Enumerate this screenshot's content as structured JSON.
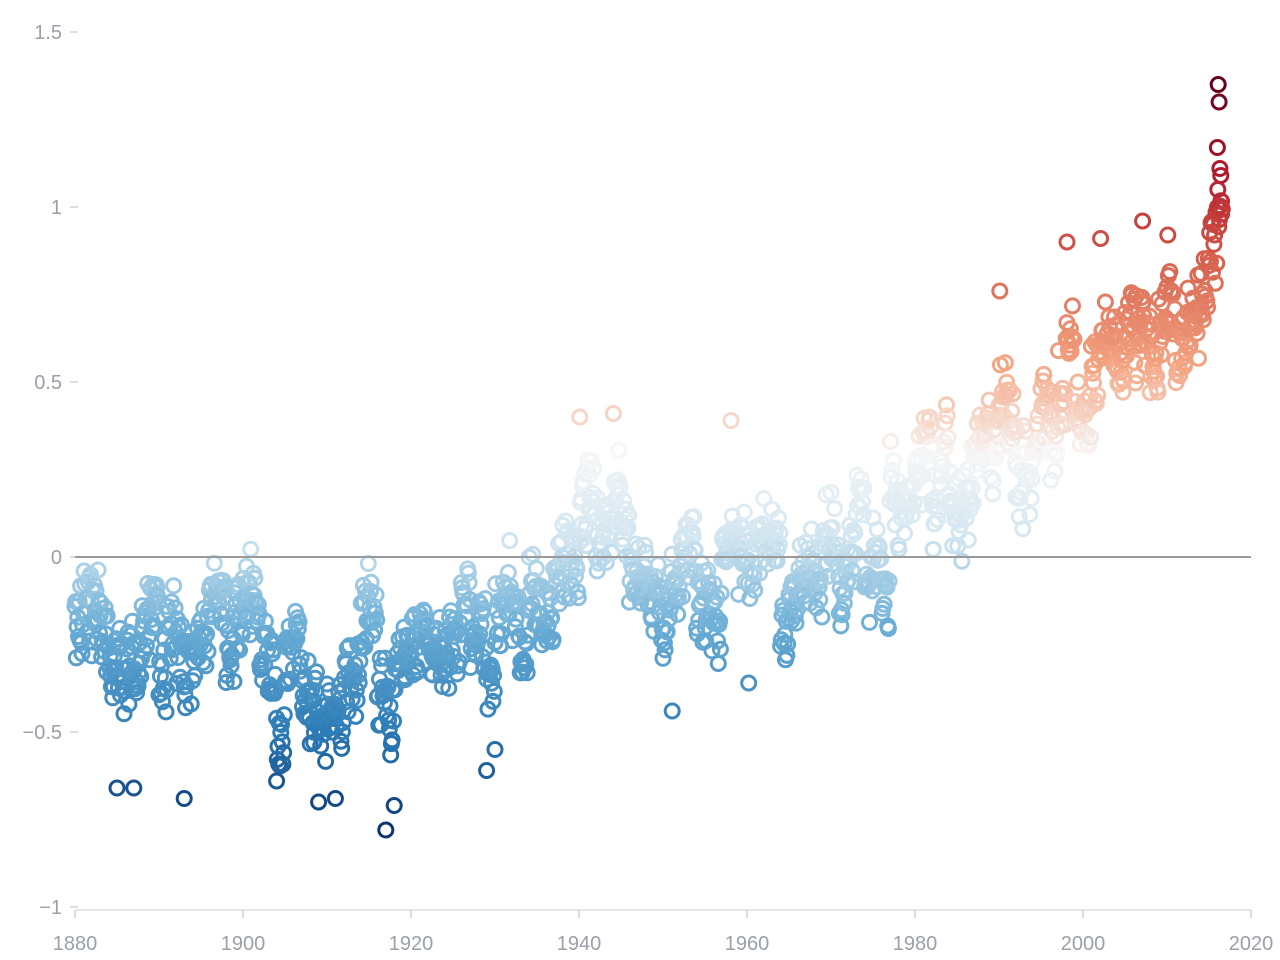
{
  "chart_data": {
    "type": "scatter",
    "title": "",
    "xlabel": "",
    "ylabel": "",
    "xlim": [
      1880,
      2020
    ],
    "ylim": [
      -1,
      1.5
    ],
    "xticks": [
      {
        "value": 1880,
        "label": "1880"
      },
      {
        "value": 1900,
        "label": "1900"
      },
      {
        "value": 1920,
        "label": "1920"
      },
      {
        "value": 1940,
        "label": "1940"
      },
      {
        "value": 1960,
        "label": "1960"
      },
      {
        "value": 1980,
        "label": "1980"
      },
      {
        "value": 2000,
        "label": "2000"
      },
      {
        "value": 2020,
        "label": "2020"
      }
    ],
    "yticks": [
      {
        "value": -1,
        "label": "−1"
      },
      {
        "value": -0.5,
        "label": "−0.5"
      },
      {
        "value": 0,
        "label": "0"
      },
      {
        "value": 0.5,
        "label": "0.5"
      },
      {
        "value": 1,
        "label": "1"
      },
      {
        "value": 1.5,
        "label": "1.5"
      }
    ],
    "reference_line": 0,
    "grid": false,
    "color_scale": "diverging blue-white-red by value",
    "colors": {
      "coldest": "#08306b",
      "cold": "#2c7bb6",
      "neutral": "#f7f7f7",
      "warm": "#ef8a62",
      "hottest": "#67001f",
      "zero_line": "#9a9a9a",
      "tick_text": "#9a9fa8"
    },
    "yearly_anomaly": [
      [
        1880,
        -0.2
      ],
      [
        1881,
        -0.12
      ],
      [
        1882,
        -0.14
      ],
      [
        1883,
        -0.22
      ],
      [
        1884,
        -0.3
      ],
      [
        1885,
        -0.32
      ],
      [
        1886,
        -0.26
      ],
      [
        1887,
        -0.33
      ],
      [
        1888,
        -0.2
      ],
      [
        1889,
        -0.12
      ],
      [
        1890,
        -0.35
      ],
      [
        1891,
        -0.22
      ],
      [
        1892,
        -0.27
      ],
      [
        1893,
        -0.32
      ],
      [
        1894,
        -0.3
      ],
      [
        1895,
        -0.23
      ],
      [
        1896,
        -0.11
      ],
      [
        1897,
        -0.11
      ],
      [
        1898,
        -0.27
      ],
      [
        1899,
        -0.17
      ],
      [
        1900,
        -0.08
      ],
      [
        1901,
        -0.15
      ],
      [
        1902,
        -0.28
      ],
      [
        1903,
        -0.37
      ],
      [
        1904,
        -0.47
      ],
      [
        1905,
        -0.26
      ],
      [
        1906,
        -0.22
      ],
      [
        1907,
        -0.39
      ],
      [
        1908,
        -0.43
      ],
      [
        1909,
        -0.48
      ],
      [
        1910,
        -0.43
      ],
      [
        1911,
        -0.44
      ],
      [
        1912,
        -0.36
      ],
      [
        1913,
        -0.34
      ],
      [
        1914,
        -0.15
      ],
      [
        1915,
        -0.14
      ],
      [
        1916,
        -0.36
      ],
      [
        1917,
        -0.46
      ],
      [
        1918,
        -0.3
      ],
      [
        1919,
        -0.27
      ],
      [
        1920,
        -0.27
      ],
      [
        1921,
        -0.19
      ],
      [
        1922,
        -0.28
      ],
      [
        1923,
        -0.26
      ],
      [
        1924,
        -0.27
      ],
      [
        1925,
        -0.22
      ],
      [
        1926,
        -0.1
      ],
      [
        1927,
        -0.22
      ],
      [
        1928,
        -0.2
      ],
      [
        1929,
        -0.36
      ],
      [
        1930,
        -0.16
      ],
      [
        1931,
        -0.09
      ],
      [
        1932,
        -0.16
      ],
      [
        1933,
        -0.29
      ],
      [
        1934,
        -0.12
      ],
      [
        1935,
        -0.2
      ],
      [
        1936,
        -0.15
      ],
      [
        1937,
        -0.03
      ],
      [
        1938,
        -0.02
      ],
      [
        1939,
        -0.01
      ],
      [
        1940,
        0.1
      ],
      [
        1941,
        0.18
      ],
      [
        1942,
        0.06
      ],
      [
        1943,
        0.08
      ],
      [
        1944,
        0.2
      ],
      [
        1945,
        0.09
      ],
      [
        1946,
        -0.07
      ],
      [
        1947,
        -0.03
      ],
      [
        1948,
        -0.11
      ],
      [
        1949,
        -0.11
      ],
      [
        1950,
        -0.17
      ],
      [
        1951,
        -0.07
      ],
      [
        1952,
        0.01
      ],
      [
        1953,
        0.08
      ],
      [
        1954,
        -0.13
      ],
      [
        1955,
        -0.14
      ],
      [
        1956,
        -0.19
      ],
      [
        1957,
        0.05
      ],
      [
        1958,
        0.06
      ],
      [
        1959,
        0.03
      ],
      [
        1960,
        -0.03
      ],
      [
        1961,
        0.06
      ],
      [
        1962,
        0.03
      ],
      [
        1963,
        0.05
      ],
      [
        1964,
        -0.2
      ],
      [
        1965,
        -0.11
      ],
      [
        1966,
        -0.06
      ],
      [
        1967,
        -0.02
      ],
      [
        1968,
        -0.08
      ],
      [
        1969,
        0.05
      ],
      [
        1970,
        0.03
      ],
      [
        1971,
        -0.08
      ],
      [
        1972,
        0.01
      ],
      [
        1973,
        0.16
      ],
      [
        1974,
        -0.07
      ],
      [
        1975,
        -0.01
      ],
      [
        1976,
        -0.1
      ],
      [
        1977,
        0.18
      ],
      [
        1978,
        0.07
      ],
      [
        1979,
        0.16
      ],
      [
        1980,
        0.26
      ],
      [
        1981,
        0.32
      ],
      [
        1982,
        0.14
      ],
      [
        1983,
        0.31
      ],
      [
        1984,
        0.16
      ],
      [
        1985,
        0.12
      ],
      [
        1986,
        0.18
      ],
      [
        1987,
        0.32
      ],
      [
        1988,
        0.39
      ],
      [
        1989,
        0.27
      ],
      [
        1990,
        0.45
      ],
      [
        1991,
        0.41
      ],
      [
        1992,
        0.22
      ],
      [
        1993,
        0.23
      ],
      [
        1994,
        0.31
      ],
      [
        1995,
        0.45
      ],
      [
        1996,
        0.33
      ],
      [
        1997,
        0.46
      ],
      [
        1998,
        0.61
      ],
      [
        1999,
        0.38
      ],
      [
        2000,
        0.39
      ],
      [
        2001,
        0.54
      ],
      [
        2002,
        0.63
      ],
      [
        2003,
        0.62
      ],
      [
        2004,
        0.54
      ],
      [
        2005,
        0.68
      ],
      [
        2006,
        0.64
      ],
      [
        2007,
        0.66
      ],
      [
        2008,
        0.54
      ],
      [
        2009,
        0.65
      ],
      [
        2010,
        0.72
      ],
      [
        2011,
        0.61
      ],
      [
        2012,
        0.64
      ],
      [
        2013,
        0.68
      ],
      [
        2014,
        0.75
      ],
      [
        2015,
        0.9
      ],
      [
        2016,
        1.01
      ]
    ],
    "monthly_spread": 0.17,
    "labeled_extremes": [
      [
        2016.1,
        1.35
      ],
      [
        2016.2,
        1.3
      ],
      [
        2016.0,
        1.17
      ],
      [
        2016.3,
        1.11
      ],
      [
        2016.4,
        1.09
      ],
      [
        2016.05,
        1.05
      ],
      [
        2016.5,
        0.98
      ],
      [
        2007.1,
        0.96
      ],
      [
        2010.1,
        0.92
      ],
      [
        1998.1,
        0.9
      ],
      [
        2002.1,
        0.91
      ],
      [
        1990.1,
        0.76
      ],
      [
        1944.1,
        0.41
      ],
      [
        1940.1,
        0.4
      ],
      [
        1958.1,
        0.39
      ],
      [
        1917.0,
        -0.78
      ],
      [
        1918.0,
        -0.71
      ],
      [
        1893.0,
        -0.69
      ],
      [
        1909.0,
        -0.7
      ],
      [
        1911.0,
        -0.69
      ],
      [
        1885.0,
        -0.66
      ],
      [
        1887.0,
        -0.66
      ],
      [
        1904.0,
        -0.64
      ],
      [
        1929.0,
        -0.61
      ],
      [
        1930.0,
        -0.55
      ],
      [
        1951.1,
        -0.44
      ],
      [
        1960.2,
        -0.36
      ]
    ]
  }
}
